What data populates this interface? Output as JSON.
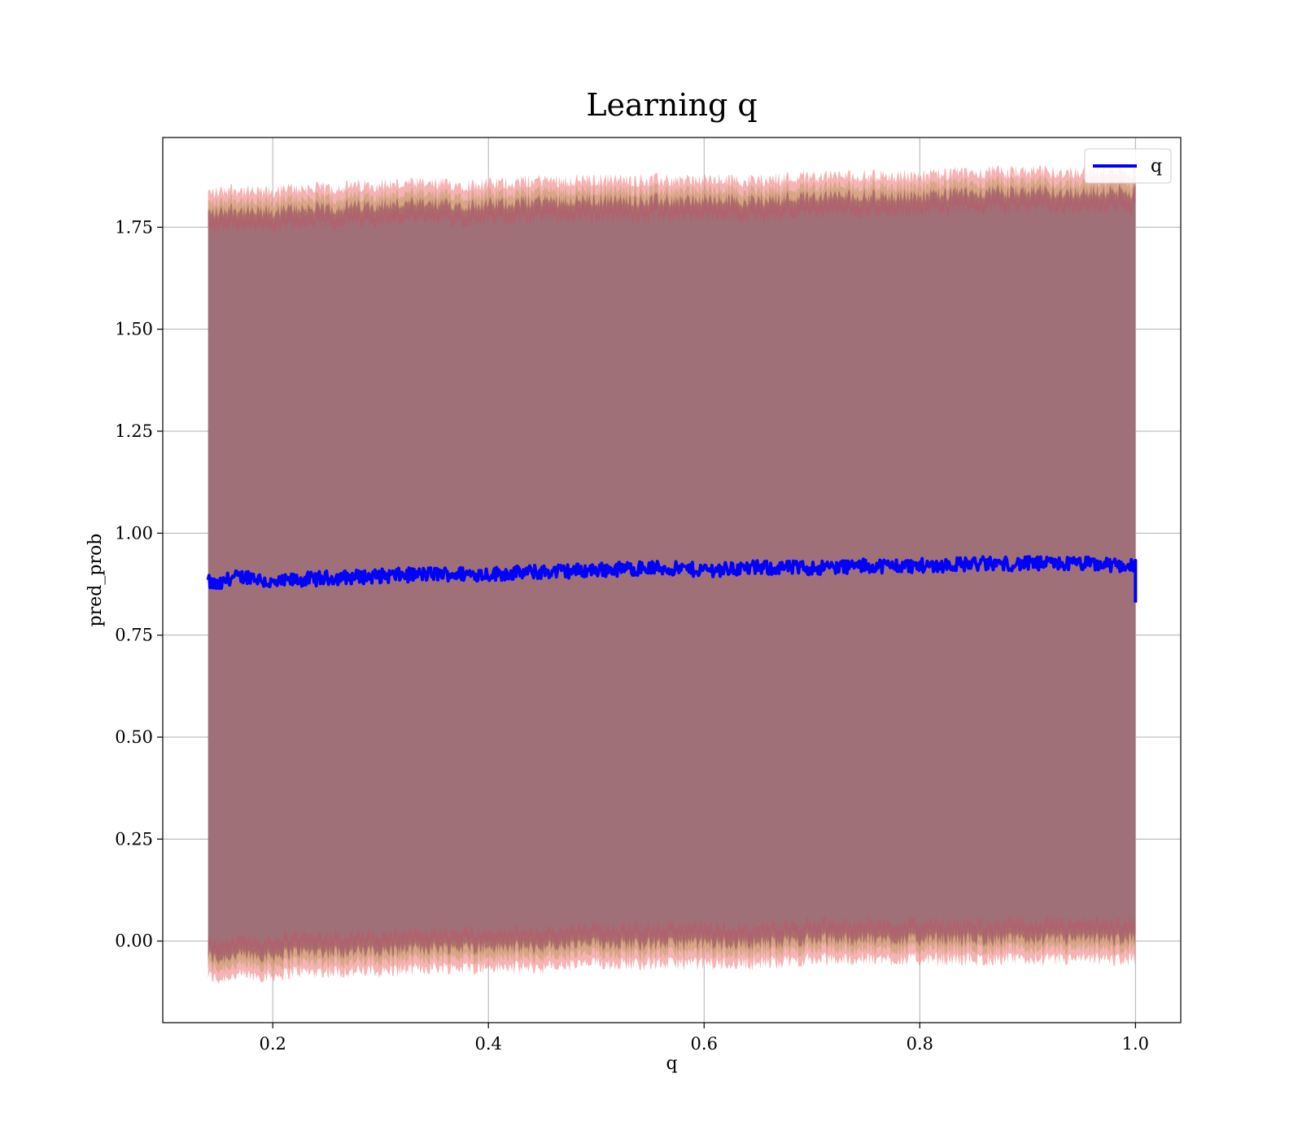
{
  "chart_data": {
    "type": "line",
    "title": "Learning q",
    "xlabel": "q",
    "ylabel": "pred_prob",
    "xlim": [
      0.098,
      1.042
    ],
    "ylim": [
      -0.2,
      1.97
    ],
    "x_ticks": [
      0.2,
      0.4,
      0.6,
      0.8,
      1.0
    ],
    "x_tick_labels": [
      "0.2",
      "0.4",
      "0.6",
      "0.8",
      "1.0"
    ],
    "y_ticks": [
      0.0,
      0.25,
      0.5,
      0.75,
      1.0,
      1.25,
      1.5,
      1.75
    ],
    "y_tick_labels": [
      "0.00",
      "0.25",
      "0.50",
      "0.75",
      "1.00",
      "1.25",
      "1.50",
      "1.75"
    ],
    "grid": true,
    "legend": {
      "position": "top-right",
      "entries": [
        "q"
      ]
    },
    "colors": {
      "line": "#0000ff",
      "band_outer": "#f08080",
      "band_mid": "#c8a070",
      "band_inner": "#8b4c60",
      "fill": "#a07078"
    },
    "series": [
      {
        "name": "q",
        "x": [
          0.14,
          0.15,
          0.16,
          0.18,
          0.2,
          0.22,
          0.25,
          0.3,
          0.35,
          0.4,
          0.45,
          0.5,
          0.55,
          0.6,
          0.65,
          0.7,
          0.75,
          0.8,
          0.85,
          0.9,
          0.95,
          1.0
        ],
        "y": [
          0.88,
          0.87,
          0.89,
          0.895,
          0.875,
          0.885,
          0.89,
          0.895,
          0.9,
          0.9,
          0.905,
          0.91,
          0.915,
          0.91,
          0.915,
          0.915,
          0.92,
          0.92,
          0.925,
          0.925,
          0.925,
          0.92
        ],
        "lower": [
          -0.04,
          -0.05,
          -0.04,
          -0.04,
          -0.04,
          -0.03,
          -0.03,
          -0.03,
          -0.02,
          -0.02,
          -0.02,
          -0.01,
          -0.01,
          -0.01,
          -0.01,
          0.0,
          0.0,
          0.0,
          0.0,
          0.0,
          0.0,
          0.0
        ],
        "upper": [
          1.79,
          1.79,
          1.8,
          1.79,
          1.79,
          1.8,
          1.8,
          1.81,
          1.81,
          1.81,
          1.82,
          1.82,
          1.82,
          1.82,
          1.82,
          1.83,
          1.83,
          1.83,
          1.84,
          1.84,
          1.84,
          1.84
        ],
        "end_drop": 0.83
      }
    ]
  }
}
